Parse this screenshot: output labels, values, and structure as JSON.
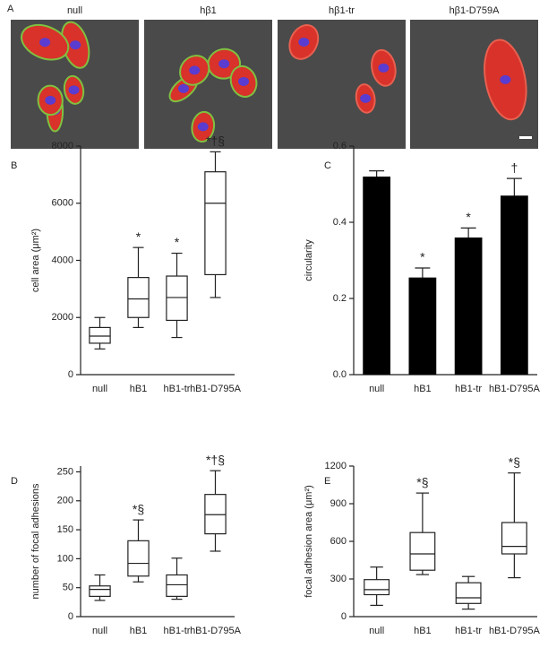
{
  "panel_a": {
    "label": "A",
    "images": [
      "null",
      "hβ1",
      "hβ1-tr",
      "hβ1-D759A"
    ]
  },
  "chart_data": [
    {
      "type": "box",
      "panel_label": "B",
      "ylabel": "cell area (μm²)",
      "categories": [
        "null",
        "hB1",
        "hB1-tr",
        "hB1-D795A"
      ],
      "boxes": [
        {
          "whislo": 900,
          "q1": 1100,
          "med": 1350,
          "q3": 1650,
          "whishi": 2000
        },
        {
          "whislo": 1650,
          "q1": 2000,
          "med": 2650,
          "q3": 3400,
          "whishi": 4450
        },
        {
          "whislo": 1300,
          "q1": 1900,
          "med": 2700,
          "q3": 3450,
          "whishi": 4250
        },
        {
          "whislo": 2700,
          "q1": 3500,
          "med": 6000,
          "q3": 7100,
          "whishi": 7800
        }
      ],
      "annotations": [
        null,
        "*",
        "*",
        "*†§"
      ],
      "ylim": [
        0,
        8000
      ],
      "yticks": [
        0,
        2000,
        4000,
        6000,
        8000
      ]
    },
    {
      "type": "bar",
      "panel_label": "C",
      "ylabel": "circularity",
      "categories": [
        "null",
        "hB1",
        "hB1-tr",
        "hB1-D795A"
      ],
      "values": [
        0.52,
        0.255,
        0.36,
        0.47
      ],
      "errors": [
        0.015,
        0.025,
        0.025,
        0.045
      ],
      "color": "#000000",
      "annotations": [
        null,
        "*",
        "*",
        "†"
      ],
      "ylim": [
        0,
        0.6
      ],
      "yticks": [
        {
          "value": 0,
          "label": "0.0"
        },
        0.2,
        0.4,
        0.6
      ]
    },
    {
      "type": "box",
      "panel_label": "D",
      "ylabel": "number of focal adhesions",
      "categories": [
        "null",
        "hB1",
        "hB1-tr",
        "hB1-D795A"
      ],
      "boxes": [
        {
          "whislo": 28,
          "q1": 35,
          "med": 47,
          "q3": 53,
          "whishi": 72
        },
        {
          "whislo": 60,
          "q1": 70,
          "med": 92,
          "q3": 131,
          "whishi": 167
        },
        {
          "whislo": 30,
          "q1": 35,
          "med": 55,
          "q3": 72,
          "whishi": 101
        },
        {
          "whislo": 113,
          "q1": 143,
          "med": 176,
          "q3": 211,
          "whishi": 252
        }
      ],
      "annotations": [
        null,
        "*§",
        null,
        "*†§"
      ],
      "ylim": [
        0,
        260
      ],
      "yticks": [
        0,
        50,
        100,
        150,
        200,
        250
      ]
    },
    {
      "type": "box",
      "panel_label": "E",
      "ylabel": "focal adhesion  area (μm²)",
      "categories": [
        "null",
        "hB1",
        "hB1-tr",
        "hB1-D795A"
      ],
      "boxes": [
        {
          "whislo": 90,
          "q1": 175,
          "med": 215,
          "q3": 295,
          "whishi": 395
        },
        {
          "whislo": 335,
          "q1": 370,
          "med": 500,
          "q3": 670,
          "whishi": 985
        },
        {
          "whislo": 60,
          "q1": 105,
          "med": 150,
          "q3": 270,
          "whishi": 320
        },
        {
          "whislo": 310,
          "q1": 500,
          "med": 560,
          "q3": 750,
          "whishi": 1145
        }
      ],
      "annotations": [
        null,
        "*§",
        null,
        "*§"
      ],
      "ylim": [
        0,
        1200
      ],
      "yticks": [
        0,
        300,
        600,
        900,
        1200
      ]
    }
  ]
}
